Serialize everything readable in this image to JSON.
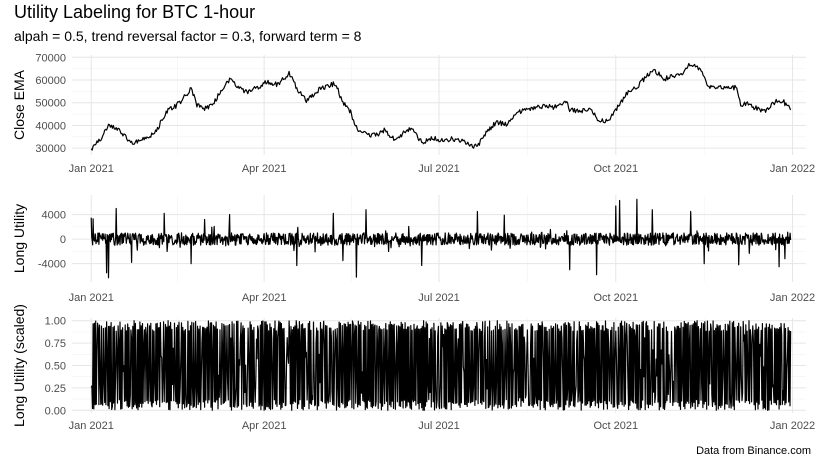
{
  "title": "Utility Labeling for BTC 1-hour",
  "subtitle": "alpah = 0.5, trend reversal factor = 0.3, forward term = 8",
  "caption": "Data from Binance.com",
  "chart_data": [
    {
      "type": "line",
      "ylabel": "Close EMA",
      "xlabel": "",
      "xlim": [
        "2020-12-22",
        "2022-01-08"
      ],
      "ylim": [
        27000,
        71000
      ],
      "yticks": [
        30000,
        40000,
        50000,
        60000,
        70000
      ],
      "ytick_labels": [
        "30000",
        "40000",
        "50000",
        "60000",
        "70000"
      ],
      "xticks": [
        "2021-01-01",
        "2021-04-01",
        "2021-07-01",
        "2021-10-01",
        "2022-01-01"
      ],
      "xtick_labels": [
        "Jan 2021",
        "Apr 2021",
        "Jul 2021",
        "Oct 2021",
        "Jan 2022"
      ],
      "grid": true,
      "series": [
        {
          "color": "#000000",
          "points": [
            [
              "2021-01-01",
              29300
            ],
            [
              "2021-01-06",
              34000
            ],
            [
              "2021-01-10",
              40500
            ],
            [
              "2021-01-14",
              38500
            ],
            [
              "2021-01-18",
              36000
            ],
            [
              "2021-01-22",
              32500
            ],
            [
              "2021-01-26",
              33500
            ],
            [
              "2021-01-30",
              34000
            ],
            [
              "2021-02-04",
              37500
            ],
            [
              "2021-02-09",
              46000
            ],
            [
              "2021-02-14",
              48500
            ],
            [
              "2021-02-18",
              52000
            ],
            [
              "2021-02-22",
              56500
            ],
            [
              "2021-02-25",
              49000
            ],
            [
              "2021-03-01",
              47500
            ],
            [
              "2021-03-05",
              49000
            ],
            [
              "2021-03-10",
              56000
            ],
            [
              "2021-03-14",
              60000
            ],
            [
              "2021-03-18",
              57500
            ],
            [
              "2021-03-23",
              54500
            ],
            [
              "2021-03-28",
              56500
            ],
            [
              "2021-04-02",
              59000
            ],
            [
              "2021-04-08",
              58000
            ],
            [
              "2021-04-14",
              63000
            ],
            [
              "2021-04-18",
              56500
            ],
            [
              "2021-04-23",
              50500
            ],
            [
              "2021-04-28",
              55000
            ],
            [
              "2021-05-03",
              57000
            ],
            [
              "2021-05-08",
              58500
            ],
            [
              "2021-05-12",
              50000
            ],
            [
              "2021-05-16",
              46000
            ],
            [
              "2021-05-19",
              39000
            ],
            [
              "2021-05-24",
              36000
            ],
            [
              "2021-05-29",
              35500
            ],
            [
              "2021-06-03",
              38000
            ],
            [
              "2021-06-08",
              33500
            ],
            [
              "2021-06-13",
              37000
            ],
            [
              "2021-06-17",
              38500
            ],
            [
              "2021-06-22",
              32500
            ],
            [
              "2021-06-27",
              34500
            ],
            [
              "2021-07-02",
              33500
            ],
            [
              "2021-07-07",
              34000
            ],
            [
              "2021-07-12",
              33500
            ],
            [
              "2021-07-17",
              31500
            ],
            [
              "2021-07-21",
              30500
            ],
            [
              "2021-07-26",
              37500
            ],
            [
              "2021-07-31",
              41500
            ],
            [
              "2021-08-05",
              40500
            ],
            [
              "2021-08-10",
              45500
            ],
            [
              "2021-08-15",
              47000
            ],
            [
              "2021-08-20",
              48000
            ],
            [
              "2021-08-25",
              48500
            ],
            [
              "2021-08-30",
              48000
            ],
            [
              "2021-09-05",
              51000
            ],
            [
              "2021-09-07",
              47000
            ],
            [
              "2021-09-12",
              46000
            ],
            [
              "2021-09-17",
              47500
            ],
            [
              "2021-09-22",
              42500
            ],
            [
              "2021-09-27",
              42000
            ],
            [
              "2021-10-02",
              48000
            ],
            [
              "2021-10-07",
              54500
            ],
            [
              "2021-10-12",
              57000
            ],
            [
              "2021-10-17",
              61500
            ],
            [
              "2021-10-21",
              64500
            ],
            [
              "2021-10-26",
              60500
            ],
            [
              "2021-10-31",
              61500
            ],
            [
              "2021-11-04",
              62000
            ],
            [
              "2021-11-09",
              67500
            ],
            [
              "2021-11-14",
              64500
            ],
            [
              "2021-11-18",
              57500
            ],
            [
              "2021-11-23",
              56500
            ],
            [
              "2021-11-28",
              57000
            ],
            [
              "2021-12-03",
              56500
            ],
            [
              "2021-12-05",
              49000
            ],
            [
              "2021-12-09",
              49500
            ],
            [
              "2021-12-14",
              47000
            ],
            [
              "2021-12-18",
              46500
            ],
            [
              "2021-12-23",
              50500
            ],
            [
              "2021-12-27",
              50800
            ],
            [
              "2021-12-31",
              46800
            ]
          ]
        }
      ]
    },
    {
      "type": "line",
      "ylabel": "Long Utility",
      "xlabel": "",
      "xlim": [
        "2020-12-22",
        "2022-01-08"
      ],
      "ylim": [
        -7000,
        7200
      ],
      "yticks": [
        -4000,
        0,
        4000
      ],
      "ytick_labels": [
        "-4000",
        "0",
        "4000"
      ],
      "xticks": [
        "2021-01-01",
        "2021-04-01",
        "2021-07-01",
        "2021-10-01",
        "2022-01-01"
      ],
      "xtick_labels": [
        "Jan 2021",
        "Apr 2021",
        "Jul 2021",
        "Oct 2021",
        "Jan 2022"
      ],
      "grid": true,
      "noise": "dense oscillating series around 0, typically within ±1500, with spikes",
      "spikes": [
        [
          "2021-01-01",
          3500
        ],
        [
          "2021-01-02",
          3300
        ],
        [
          "2021-01-09",
          -5500
        ],
        [
          "2021-01-10",
          -6300
        ],
        [
          "2021-01-14",
          5000
        ],
        [
          "2021-01-22",
          -3800
        ],
        [
          "2021-02-08",
          4200
        ],
        [
          "2021-02-22",
          -4000
        ],
        [
          "2021-03-01",
          3200
        ],
        [
          "2021-03-14",
          4000
        ],
        [
          "2021-04-18",
          -4300
        ],
        [
          "2021-05-07",
          4200
        ],
        [
          "2021-05-12",
          -3500
        ],
        [
          "2021-05-19",
          -6200
        ],
        [
          "2021-05-24",
          4800
        ],
        [
          "2021-06-22",
          -4300
        ],
        [
          "2021-07-21",
          4500
        ],
        [
          "2021-08-04",
          3900
        ],
        [
          "2021-09-07",
          -5000
        ],
        [
          "2021-09-21",
          -5800
        ],
        [
          "2021-10-01",
          5400
        ],
        [
          "2021-10-03",
          6300
        ],
        [
          "2021-10-12",
          6500
        ],
        [
          "2021-10-20",
          4800
        ],
        [
          "2021-11-09",
          4500
        ],
        [
          "2021-11-16",
          -4000
        ],
        [
          "2021-12-04",
          -4200
        ],
        [
          "2021-12-25",
          -4500
        ],
        [
          "2021-12-28",
          -3200
        ]
      ]
    },
    {
      "type": "line",
      "ylabel": "Long Utility (scaled)",
      "xlabel": "",
      "xlim": [
        "2020-12-22",
        "2022-01-08"
      ],
      "ylim": [
        -0.03,
        1.03
      ],
      "yticks": [
        0.0,
        0.25,
        0.5,
        0.75,
        1.0
      ],
      "ytick_labels": [
        "0.00",
        "0.25",
        "0.50",
        "0.75",
        "1.00"
      ],
      "xticks": [
        "2021-01-01",
        "2021-04-01",
        "2021-07-01",
        "2021-10-01",
        "2022-01-01"
      ],
      "xtick_labels": [
        "Jan 2021",
        "Apr 2021",
        "Jul 2021",
        "Oct 2021",
        "Jan 2022"
      ],
      "grid": true,
      "noise": "dense series oscillating between 0 and 1 throughout the year",
      "range": [
        0,
        1
      ]
    }
  ]
}
